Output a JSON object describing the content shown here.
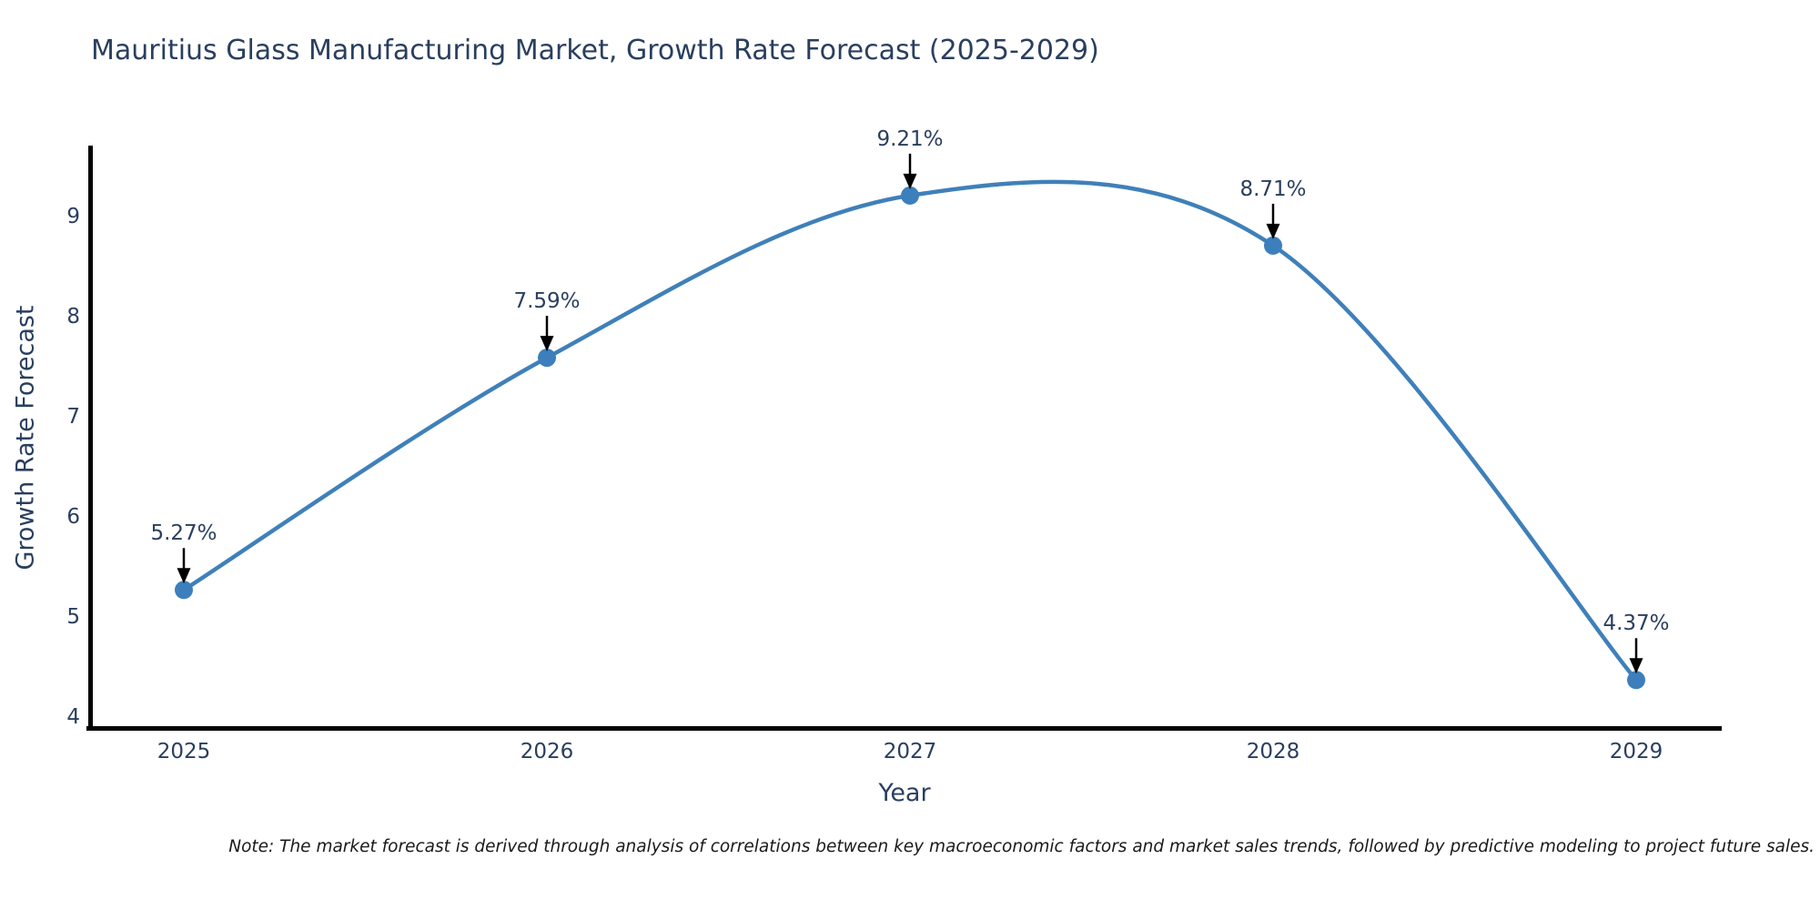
{
  "note": {
    "text": "Note: The market forecast is derived through analysis of correlations between key macroeconomic factors and market sales trends, followed by predictive modeling to project future sales."
  },
  "chart_data": {
    "type": "line",
    "title": "Mauritius Glass Manufacturing Market, Growth Rate Forecast (2025-2029)",
    "xlabel": "Year",
    "ylabel": "Growth Rate Forecast",
    "categories": [
      "2025",
      "2026",
      "2027",
      "2028",
      "2029"
    ],
    "series": [
      {
        "name": "Growth Rate Forecast",
        "values": [
          5.27,
          7.59,
          9.21,
          8.71,
          4.37
        ],
        "point_labels": [
          "5.27%",
          "7.59%",
          "9.21%",
          "8.71%",
          "4.37%"
        ]
      }
    ],
    "yticks": [
      4,
      5,
      6,
      7,
      8,
      9
    ],
    "ylim": [
      3.88,
      9.71
    ],
    "grid": false,
    "legend_position": "none",
    "line_shape": "spline",
    "colors": {
      "line": "#3f80ba",
      "marker": "#3c7fbc",
      "axis": "#000000",
      "text": "#2a3f5f",
      "annotation_arrow": "#000000",
      "background": "#ffffff"
    }
  }
}
